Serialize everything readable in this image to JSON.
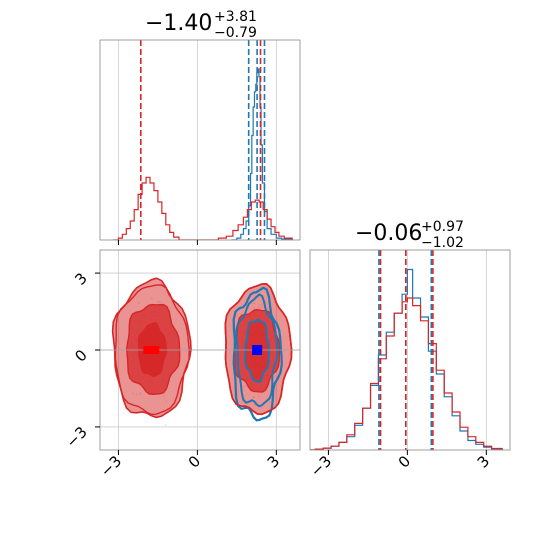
{
  "chart_data": {
    "type": "corner",
    "titles": {
      "param1": {
        "median": "−1.40",
        "plus": "+3.81",
        "minus": "−0.79"
      },
      "param2": {
        "median": "−0.06",
        "plus": "+0.97",
        "minus": "−1.02"
      }
    },
    "axes": {
      "xlim": [
        -3.7,
        3.9
      ],
      "ylim": [
        -3.9,
        3.9
      ],
      "ticks": [
        -3,
        0,
        3
      ],
      "tick_labels": [
        "−3",
        "0",
        "3"
      ],
      "grid": true
    },
    "series": [
      {
        "color": "#1f77b4"
      },
      {
        "color": "#d62728"
      }
    ],
    "marginal_param1": {
      "blue_quantiles": [
        1.95,
        2.27,
        2.55
      ],
      "red_quantiles": [
        -2.15,
        2.4
      ],
      "blue_hist": [
        [
          1.3,
          0
        ],
        [
          1.5,
          0.01
        ],
        [
          1.65,
          0.03
        ],
        [
          1.75,
          0.06
        ],
        [
          1.85,
          0.1
        ],
        [
          1.95,
          0.18
        ],
        [
          2.02,
          0.35
        ],
        [
          2.07,
          0.55
        ],
        [
          2.12,
          0.7
        ],
        [
          2.17,
          0.78
        ],
        [
          2.22,
          0.82
        ],
        [
          2.26,
          0.88
        ],
        [
          2.3,
          0.9
        ],
        [
          2.34,
          0.86
        ],
        [
          2.38,
          0.7
        ],
        [
          2.42,
          0.5
        ],
        [
          2.47,
          0.3
        ],
        [
          2.55,
          0.15
        ],
        [
          2.65,
          0.06
        ],
        [
          2.8,
          0.03
        ],
        [
          3.0,
          0.01
        ],
        [
          3.2,
          0.005
        ],
        [
          3.6,
          0
        ]
      ],
      "red_hist": [
        [
          -3.2,
          0
        ],
        [
          -3.0,
          0.01
        ],
        [
          -2.85,
          0.03
        ],
        [
          -2.7,
          0.06
        ],
        [
          -2.55,
          0.1
        ],
        [
          -2.4,
          0.16
        ],
        [
          -2.25,
          0.24
        ],
        [
          -2.1,
          0.3
        ],
        [
          -1.95,
          0.33
        ],
        [
          -1.8,
          0.3
        ],
        [
          -1.65,
          0.26
        ],
        [
          -1.5,
          0.2
        ],
        [
          -1.35,
          0.14
        ],
        [
          -1.2,
          0.08
        ],
        [
          -1.05,
          0.04
        ],
        [
          -0.9,
          0.015
        ],
        [
          -0.7,
          0
        ],
        [
          0.5,
          0
        ],
        [
          0.8,
          0.01
        ],
        [
          1.1,
          0.02
        ],
        [
          1.35,
          0.05
        ],
        [
          1.55,
          0.08
        ],
        [
          1.75,
          0.12
        ],
        [
          1.9,
          0.16
        ],
        [
          2.05,
          0.2
        ],
        [
          2.2,
          0.21
        ],
        [
          2.35,
          0.2
        ],
        [
          2.5,
          0.16
        ],
        [
          2.65,
          0.11
        ],
        [
          2.8,
          0.07
        ],
        [
          2.95,
          0.04
        ],
        [
          3.1,
          0.02
        ],
        [
          3.3,
          0.01
        ],
        [
          3.6,
          0
        ]
      ]
    },
    "marginal_param2": {
      "blue_quantiles": [
        -1.08,
        -0.06,
        0.91
      ],
      "red_quantiles": [
        -1.02,
        -0.06,
        0.97
      ],
      "blue_hist": [
        [
          -3.9,
          0
        ],
        [
          -3.5,
          0.004
        ],
        [
          -3.2,
          0.01
        ],
        [
          -2.9,
          0.02
        ],
        [
          -2.6,
          0.04
        ],
        [
          -2.3,
          0.07
        ],
        [
          -2.0,
          0.13
        ],
        [
          -1.7,
          0.22
        ],
        [
          -1.4,
          0.34
        ],
        [
          -1.1,
          0.5
        ],
        [
          -0.8,
          0.62
        ],
        [
          -0.5,
          0.72
        ],
        [
          -0.2,
          0.82
        ],
        [
          0.0,
          0.95
        ],
        [
          0.2,
          0.8
        ],
        [
          0.5,
          0.7
        ],
        [
          0.8,
          0.52
        ],
        [
          1.1,
          0.4
        ],
        [
          1.4,
          0.28
        ],
        [
          1.7,
          0.18
        ],
        [
          2.0,
          0.1
        ],
        [
          2.3,
          0.05
        ],
        [
          2.6,
          0.03
        ],
        [
          2.9,
          0.015
        ],
        [
          3.2,
          0.006
        ],
        [
          3.6,
          0
        ]
      ],
      "red_hist": [
        [
          -3.9,
          0
        ],
        [
          -3.5,
          0.005
        ],
        [
          -3.2,
          0.01
        ],
        [
          -2.9,
          0.02
        ],
        [
          -2.6,
          0.04
        ],
        [
          -2.3,
          0.08
        ],
        [
          -2.0,
          0.14
        ],
        [
          -1.7,
          0.22
        ],
        [
          -1.4,
          0.35
        ],
        [
          -1.1,
          0.48
        ],
        [
          -0.8,
          0.6
        ],
        [
          -0.5,
          0.72
        ],
        [
          -0.2,
          0.78
        ],
        [
          0.0,
          0.8
        ],
        [
          0.2,
          0.76
        ],
        [
          0.5,
          0.68
        ],
        [
          0.8,
          0.56
        ],
        [
          1.1,
          0.42
        ],
        [
          1.4,
          0.3
        ],
        [
          1.7,
          0.2
        ],
        [
          2.0,
          0.12
        ],
        [
          2.3,
          0.07
        ],
        [
          2.6,
          0.04
        ],
        [
          2.9,
          0.02
        ],
        [
          3.2,
          0.008
        ],
        [
          3.6,
          0
        ]
      ]
    },
    "joint": {
      "blue_median": [
        2.27,
        0.0
      ],
      "red_median": [
        -1.75,
        0.0
      ]
    }
  }
}
